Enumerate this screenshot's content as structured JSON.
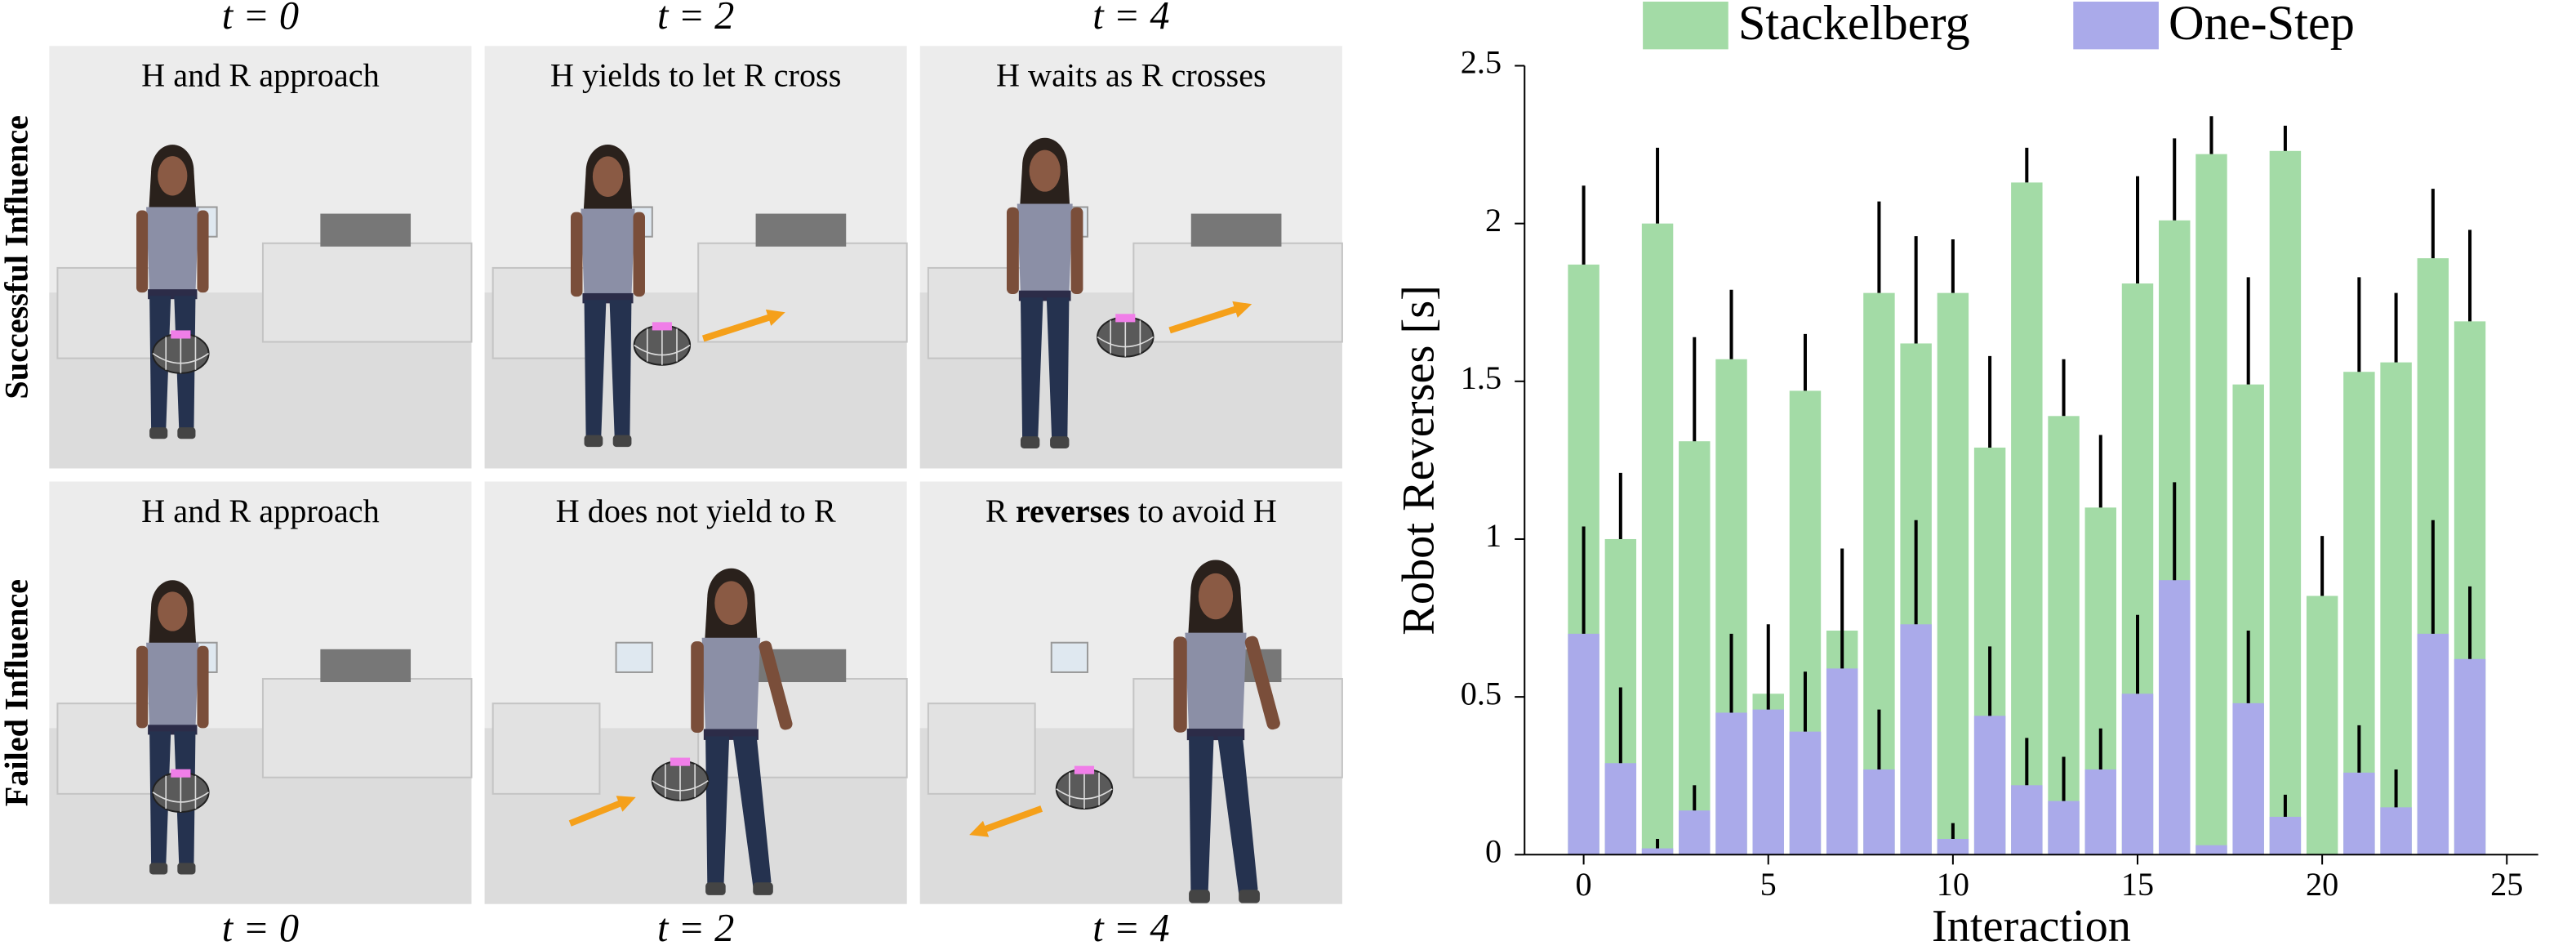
{
  "panels": {
    "top_times": [
      "t = 0",
      "t = 2",
      "t = 4"
    ],
    "bottom_times": [
      "t = 0",
      "t = 2",
      "t = 4"
    ],
    "row_labels": [
      "Successful Influence",
      "Failed Influence"
    ],
    "captions": [
      {
        "parts": [
          "H and R approach"
        ]
      },
      {
        "parts": [
          "H yields to let R cross"
        ]
      },
      {
        "parts": [
          "H waits as R crosses"
        ]
      },
      {
        "parts": [
          "H and R approach"
        ]
      },
      {
        "parts": [
          "H does not yield to R"
        ]
      },
      {
        "parts": [
          "R ",
          "reverses",
          " to avoid H"
        ],
        "bold_part": 1
      }
    ]
  },
  "chart_data": {
    "type": "bar",
    "xlabel": "Interaction",
    "ylabel": "Robot Reverses [s]",
    "x": [
      0,
      1,
      2,
      3,
      4,
      5,
      6,
      7,
      8,
      9,
      10,
      11,
      12,
      13,
      14,
      15,
      16,
      17,
      18,
      19,
      20,
      21,
      22,
      23,
      24
    ],
    "series": [
      {
        "name": "Stackelberg",
        "color": "#a3dba6",
        "values": [
          1.87,
          1.0,
          2.0,
          1.31,
          1.57,
          0.51,
          1.47,
          0.71,
          1.78,
          1.62,
          1.78,
          1.29,
          2.13,
          1.39,
          1.1,
          1.81,
          2.01,
          2.22,
          1.49,
          2.23,
          0.82,
          1.53,
          1.56,
          1.89,
          1.69
        ],
        "errors": [
          0.25,
          0.21,
          0.24,
          0.33,
          0.22,
          0,
          0.18,
          0,
          0.29,
          0.34,
          0.17,
          0.29,
          0.11,
          0.18,
          0.23,
          0.34,
          0.26,
          0.12,
          0.34,
          0.08,
          0.19,
          0.3,
          0.22,
          0.22,
          0.29
        ]
      },
      {
        "name": "One-Step",
        "color": "#aaaaea",
        "values": [
          0.7,
          0.29,
          0.02,
          0.14,
          0.45,
          0.46,
          0.39,
          0.59,
          0.27,
          0.73,
          0.05,
          0.44,
          0.22,
          0.17,
          0.27,
          0.51,
          0.87,
          0.03,
          0.48,
          0.12,
          0,
          0.26,
          0.15,
          0.7,
          0.62
        ],
        "errors": [
          0.34,
          0.24,
          0.03,
          0.08,
          0.25,
          0.27,
          0.19,
          0.38,
          0.19,
          0.33,
          0.05,
          0.22,
          0.15,
          0.14,
          0.13,
          0.25,
          0.31,
          0,
          0.23,
          0.07,
          0,
          0.15,
          0.12,
          0.36,
          0.23
        ]
      }
    ],
    "xlim": [
      -1.6,
      25.85
    ],
    "xticks": [
      0,
      5,
      10,
      15,
      20,
      25
    ],
    "ylim": [
      0,
      2.5
    ],
    "yticks": [
      0,
      0.5,
      1,
      1.5,
      2,
      2.5
    ],
    "legend": "top"
  }
}
